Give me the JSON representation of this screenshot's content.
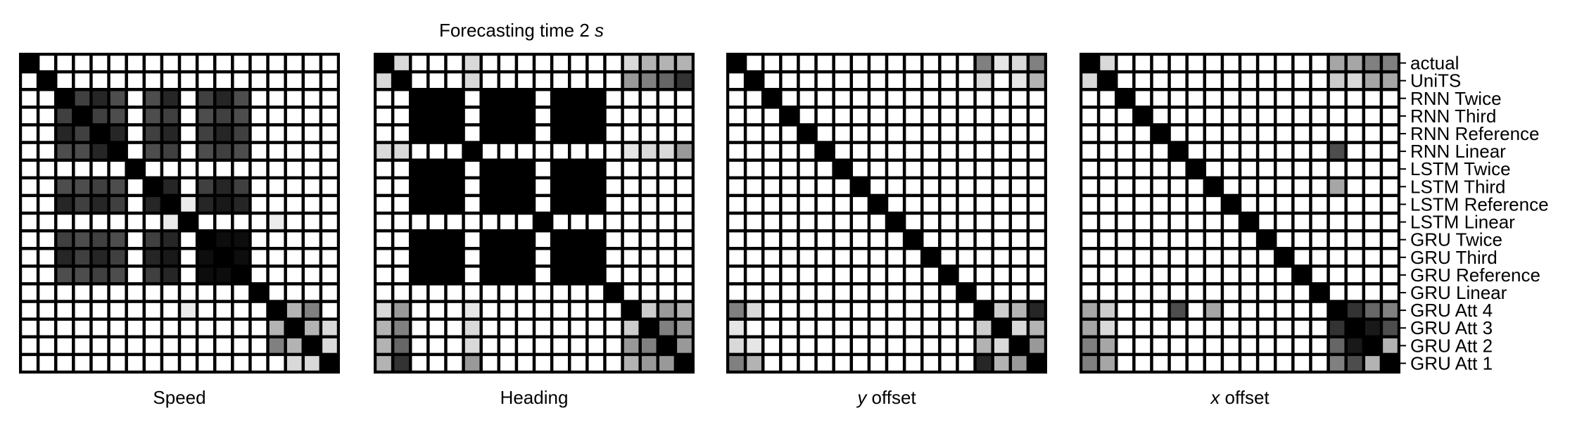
{
  "figure": {
    "title_prefix": "Forecasting time 2 ",
    "title_unit": "s"
  },
  "row_labels": [
    "actual",
    "UniTS",
    "RNN Twice",
    "RNN Third",
    "RNN Reference",
    "RNN Linear",
    "LSTM Twice",
    "LSTM Third",
    "LSTM Reference",
    "LSTM Linear",
    "GRU Twice",
    "GRU Third",
    "GRU Reference",
    "GRU Linear",
    "GRU Att 4",
    "GRU Att 3",
    "GRU Att 2",
    "GRU Att 1"
  ],
  "colors": {
    "similar": "#000000",
    "dissimilar": "#ffffff",
    "grid": "#000000"
  },
  "chart_data": [
    {
      "type": "heatmap",
      "xlabel": "Speed",
      "xlabel_italic_prefix": "",
      "matrix": [
        [
          1,
          0,
          0,
          0,
          0,
          0,
          0,
          0,
          0,
          0,
          0,
          0,
          0,
          0,
          0,
          0,
          0,
          0
        ],
        [
          0,
          1,
          0,
          0,
          0,
          0,
          0,
          0,
          0,
          0,
          0,
          0,
          0,
          0,
          0,
          0,
          0,
          0
        ],
        [
          0,
          0,
          1,
          0.75,
          0.85,
          0.7,
          0,
          0.7,
          0.85,
          0,
          0.75,
          0.85,
          0.7,
          0,
          0,
          0,
          0,
          0
        ],
        [
          0,
          0,
          0.75,
          1,
          0.75,
          0.7,
          0,
          0.7,
          0.75,
          0,
          0.7,
          0.75,
          0.7,
          0,
          0,
          0,
          0,
          0
        ],
        [
          0,
          0,
          0.85,
          0.75,
          1,
          0.85,
          0,
          0.75,
          0.85,
          0,
          0.75,
          0.85,
          0.75,
          0,
          0,
          0,
          0,
          0
        ],
        [
          0,
          0,
          0.7,
          0.7,
          0.85,
          1,
          0,
          0.7,
          0.75,
          0,
          0.7,
          0.75,
          0.7,
          0,
          0,
          0,
          0,
          0
        ],
        [
          0,
          0,
          0,
          0,
          0,
          0,
          1,
          0,
          0,
          0,
          0,
          0,
          0,
          0,
          0,
          0,
          0,
          0
        ],
        [
          0,
          0,
          0.7,
          0.7,
          0.75,
          0.7,
          0,
          1,
          0.85,
          0,
          0.75,
          0.85,
          0.75,
          0,
          0,
          0,
          0,
          0
        ],
        [
          0,
          0,
          0.85,
          0.75,
          0.85,
          0.75,
          0,
          0.85,
          1,
          0.08,
          0.85,
          0.9,
          0.85,
          0,
          0,
          0,
          0,
          0
        ],
        [
          0,
          0,
          0,
          0,
          0,
          0,
          0,
          0,
          0.08,
          1,
          0,
          0,
          0,
          0,
          0.08,
          0,
          0,
          0
        ],
        [
          0,
          0,
          0.75,
          0.7,
          0.75,
          0.7,
          0,
          0.75,
          0.85,
          0,
          1,
          0.95,
          0.95,
          0,
          0,
          0,
          0,
          0
        ],
        [
          0,
          0,
          0.85,
          0.75,
          0.85,
          0.75,
          0,
          0.85,
          0.9,
          0,
          0.95,
          1,
          0.95,
          0,
          0,
          0,
          0,
          0
        ],
        [
          0,
          0,
          0.7,
          0.7,
          0.75,
          0.7,
          0,
          0.75,
          0.85,
          0,
          0.95,
          0.95,
          1,
          0,
          0,
          0,
          0,
          0
        ],
        [
          0,
          0,
          0,
          0,
          0,
          0,
          0,
          0,
          0,
          0,
          0,
          0,
          0,
          1,
          0,
          0,
          0,
          0
        ],
        [
          0,
          0,
          0,
          0,
          0,
          0,
          0,
          0,
          0,
          0.08,
          0,
          0,
          0,
          0,
          1,
          0.3,
          0.5,
          0
        ],
        [
          0,
          0,
          0,
          0,
          0,
          0,
          0,
          0,
          0,
          0,
          0,
          0,
          0,
          0,
          0.3,
          1,
          0.3,
          0.15
        ],
        [
          0,
          0,
          0,
          0,
          0,
          0,
          0,
          0,
          0,
          0,
          0,
          0,
          0,
          0,
          0.5,
          0.3,
          1,
          0.15
        ],
        [
          0,
          0,
          0,
          0,
          0,
          0,
          0,
          0,
          0,
          0,
          0,
          0,
          0,
          0,
          0,
          0.15,
          0.15,
          1
        ]
      ]
    },
    {
      "type": "heatmap",
      "xlabel": "Heading",
      "xlabel_italic_prefix": "",
      "matrix": [
        [
          1,
          0.15,
          0,
          0,
          0,
          0.15,
          0,
          0,
          0,
          0,
          0,
          0,
          0,
          0,
          0.15,
          0.3,
          0.3,
          0.3
        ],
        [
          0.15,
          1,
          0,
          0,
          0,
          0.15,
          0,
          0,
          0,
          0,
          0,
          0,
          0,
          0,
          0.4,
          0.5,
          0.6,
          0.8
        ],
        [
          0,
          0,
          1,
          1,
          1,
          0,
          1,
          1,
          1,
          0,
          1,
          1,
          1,
          0,
          0,
          0,
          0,
          0
        ],
        [
          0,
          0,
          1,
          1,
          1,
          0,
          1,
          1,
          1,
          0,
          1,
          1,
          1,
          0,
          0,
          0,
          0,
          0
        ],
        [
          0,
          0,
          1,
          1,
          1,
          0,
          1,
          1,
          1,
          0,
          1,
          1,
          1,
          0,
          0,
          0,
          0,
          0
        ],
        [
          0.15,
          0.15,
          0,
          0,
          0,
          1,
          0,
          0,
          0,
          0,
          0,
          0,
          0,
          0,
          0.1,
          0.15,
          0.15,
          0.4
        ],
        [
          0,
          0,
          1,
          1,
          1,
          0,
          1,
          1,
          1,
          0,
          1,
          1,
          1,
          0,
          0,
          0,
          0,
          0
        ],
        [
          0,
          0,
          1,
          1,
          1,
          0,
          1,
          1,
          1,
          0,
          1,
          1,
          1,
          0,
          0,
          0,
          0,
          0
        ],
        [
          0,
          0,
          1,
          1,
          1,
          0,
          1,
          1,
          1,
          0,
          1,
          1,
          1,
          0,
          0,
          0,
          0,
          0
        ],
        [
          0,
          0,
          0,
          0,
          0,
          0,
          0,
          0,
          0,
          1,
          0,
          0,
          0,
          0,
          0,
          0,
          0,
          0
        ],
        [
          0,
          0,
          1,
          1,
          1,
          0,
          1,
          1,
          1,
          0,
          1,
          1,
          1,
          0,
          0,
          0,
          0,
          0
        ],
        [
          0,
          0,
          1,
          1,
          1,
          0,
          1,
          1,
          1,
          0,
          1,
          1,
          1,
          0,
          0,
          0,
          0,
          0
        ],
        [
          0,
          0,
          1,
          1,
          1,
          0,
          1,
          1,
          1,
          0,
          1,
          1,
          1,
          0,
          0,
          0,
          0,
          0
        ],
        [
          0,
          0,
          0,
          0,
          0,
          0,
          0,
          0,
          0,
          0,
          0,
          0,
          0,
          1,
          0,
          0,
          0,
          0
        ],
        [
          0.15,
          0.4,
          0,
          0,
          0,
          0.1,
          0,
          0,
          0,
          0,
          0,
          0,
          0,
          0,
          1,
          0.2,
          0.4,
          0.3
        ],
        [
          0.3,
          0.5,
          0,
          0,
          0,
          0.15,
          0,
          0,
          0,
          0,
          0,
          0,
          0,
          0,
          0.2,
          1,
          0.5,
          0.4
        ],
        [
          0.3,
          0.6,
          0,
          0,
          0,
          0.15,
          0,
          0,
          0,
          0,
          0,
          0,
          0,
          0,
          0.4,
          0.5,
          1,
          0.4
        ],
        [
          0.3,
          0.8,
          0,
          0,
          0,
          0.4,
          0,
          0,
          0,
          0,
          0,
          0,
          0,
          0,
          0.3,
          0.4,
          0.4,
          1
        ]
      ]
    },
    {
      "type": "heatmap",
      "xlabel": "offset",
      "xlabel_italic_prefix": "y",
      "matrix": [
        [
          1,
          0,
          0,
          0,
          0,
          0,
          0,
          0,
          0,
          0,
          0,
          0,
          0,
          0,
          0.5,
          0.1,
          0.15,
          0.5
        ],
        [
          0,
          1,
          0,
          0,
          0,
          0,
          0,
          0,
          0,
          0,
          0,
          0,
          0,
          0,
          0.15,
          0,
          0.1,
          0.3
        ],
        [
          0,
          0,
          1,
          0,
          0,
          0,
          0,
          0,
          0,
          0,
          0,
          0,
          0,
          0,
          0,
          0,
          0,
          0
        ],
        [
          0,
          0,
          0,
          1,
          0,
          0,
          0,
          0,
          0,
          0,
          0,
          0,
          0,
          0,
          0,
          0,
          0,
          0
        ],
        [
          0,
          0,
          0,
          0,
          1,
          0,
          0,
          0,
          0,
          0,
          0,
          0,
          0,
          0,
          0,
          0,
          0,
          0
        ],
        [
          0,
          0,
          0,
          0,
          0,
          1,
          0,
          0,
          0,
          0,
          0,
          0,
          0,
          0,
          0,
          0,
          0,
          0
        ],
        [
          0,
          0,
          0,
          0,
          0,
          0,
          1,
          0,
          0,
          0,
          0,
          0,
          0,
          0,
          0,
          0,
          0,
          0
        ],
        [
          0,
          0,
          0,
          0,
          0,
          0,
          0,
          1,
          0,
          0,
          0,
          0,
          0,
          0,
          0,
          0,
          0,
          0
        ],
        [
          0,
          0,
          0,
          0,
          0,
          0,
          0,
          0,
          1,
          0,
          0,
          0,
          0,
          0,
          0,
          0,
          0,
          0
        ],
        [
          0,
          0,
          0,
          0,
          0,
          0,
          0,
          0,
          0,
          1,
          0,
          0,
          0,
          0,
          0,
          0,
          0,
          0
        ],
        [
          0,
          0,
          0,
          0,
          0,
          0,
          0,
          0,
          0,
          0,
          1,
          0,
          0,
          0,
          0,
          0,
          0,
          0
        ],
        [
          0,
          0,
          0,
          0,
          0,
          0,
          0,
          0,
          0,
          0,
          0,
          1,
          0,
          0,
          0,
          0,
          0,
          0
        ],
        [
          0,
          0,
          0,
          0,
          0,
          0,
          0,
          0,
          0,
          0,
          0,
          0,
          1,
          0,
          0,
          0,
          0,
          0
        ],
        [
          0,
          0,
          0,
          0,
          0,
          0,
          0,
          0,
          0,
          0,
          0,
          0,
          0,
          1,
          0,
          0,
          0,
          0
        ],
        [
          0.5,
          0.15,
          0,
          0,
          0,
          0,
          0,
          0,
          0,
          0,
          0,
          0,
          0,
          0,
          1,
          0.2,
          0.3,
          0.85
        ],
        [
          0.1,
          0,
          0,
          0,
          0,
          0,
          0,
          0,
          0,
          0,
          0,
          0,
          0,
          0,
          0.2,
          1,
          0.15,
          0.3
        ],
        [
          0.15,
          0.1,
          0,
          0,
          0,
          0,
          0,
          0,
          0,
          0,
          0,
          0,
          0,
          0,
          0.3,
          0.15,
          1,
          0.4
        ],
        [
          0.5,
          0.3,
          0,
          0,
          0,
          0,
          0,
          0,
          0,
          0,
          0,
          0,
          0,
          0,
          0.85,
          0.3,
          0.4,
          1
        ]
      ]
    },
    {
      "type": "heatmap",
      "xlabel": "offset",
      "xlabel_italic_prefix": "x",
      "matrix": [
        [
          1,
          0.15,
          0,
          0,
          0,
          0,
          0,
          0,
          0,
          0,
          0,
          0,
          0,
          0,
          0.35,
          0.35,
          0.5,
          0.5
        ],
        [
          0.15,
          1,
          0,
          0,
          0,
          0,
          0,
          0,
          0,
          0,
          0,
          0,
          0,
          0,
          0.2,
          0.15,
          0.35,
          0.35
        ],
        [
          0,
          0,
          1,
          0,
          0,
          0,
          0,
          0,
          0,
          0,
          0,
          0,
          0,
          0,
          0,
          0,
          0,
          0
        ],
        [
          0,
          0,
          0,
          1,
          0,
          0,
          0,
          0,
          0,
          0,
          0,
          0,
          0,
          0,
          0,
          0,
          0,
          0
        ],
        [
          0,
          0,
          0,
          0,
          1,
          0,
          0,
          0,
          0,
          0,
          0,
          0,
          0,
          0,
          0,
          0,
          0,
          0
        ],
        [
          0,
          0,
          0,
          0,
          0,
          1,
          0,
          0,
          0,
          0,
          0,
          0,
          0,
          0,
          0.7,
          0,
          0,
          0
        ],
        [
          0,
          0,
          0,
          0,
          0,
          0,
          1,
          0,
          0,
          0,
          0,
          0,
          0,
          0,
          0,
          0,
          0,
          0
        ],
        [
          0,
          0,
          0,
          0,
          0,
          0,
          0,
          1,
          0,
          0,
          0,
          0,
          0,
          0,
          0.35,
          0,
          0,
          0
        ],
        [
          0,
          0,
          0,
          0,
          0,
          0,
          0,
          0,
          1,
          0,
          0,
          0,
          0,
          0,
          0,
          0,
          0,
          0
        ],
        [
          0,
          0,
          0,
          0,
          0,
          0,
          0,
          0,
          0,
          1,
          0,
          0,
          0,
          0,
          0,
          0,
          0,
          0
        ],
        [
          0,
          0,
          0,
          0,
          0,
          0,
          0,
          0,
          0,
          0,
          1,
          0,
          0,
          0,
          0,
          0,
          0,
          0
        ],
        [
          0,
          0,
          0,
          0,
          0,
          0,
          0,
          0,
          0,
          0,
          0,
          1,
          0,
          0,
          0,
          0,
          0,
          0
        ],
        [
          0,
          0,
          0,
          0,
          0,
          0,
          0,
          0,
          0,
          0,
          0,
          0,
          1,
          0,
          0,
          0,
          0,
          0
        ],
        [
          0,
          0,
          0,
          0,
          0,
          0,
          0,
          0,
          0,
          0,
          0,
          0,
          0,
          1,
          0,
          0,
          0,
          0
        ],
        [
          0.35,
          0.2,
          0,
          0,
          0,
          0.7,
          0,
          0.35,
          0,
          0,
          0,
          0,
          0,
          0,
          1,
          0.8,
          0.6,
          0.5
        ],
        [
          0.35,
          0.15,
          0,
          0,
          0,
          0,
          0,
          0,
          0,
          0,
          0,
          0,
          0,
          0,
          0.8,
          1,
          0.9,
          0.7
        ],
        [
          0.5,
          0.35,
          0,
          0,
          0,
          0,
          0,
          0,
          0,
          0,
          0,
          0,
          0,
          0,
          0.6,
          0.9,
          1,
          0.3
        ],
        [
          0.5,
          0.35,
          0,
          0,
          0,
          0,
          0,
          0,
          0,
          0,
          0,
          0,
          0,
          0,
          0.5,
          0.7,
          0.3,
          1
        ]
      ]
    }
  ]
}
